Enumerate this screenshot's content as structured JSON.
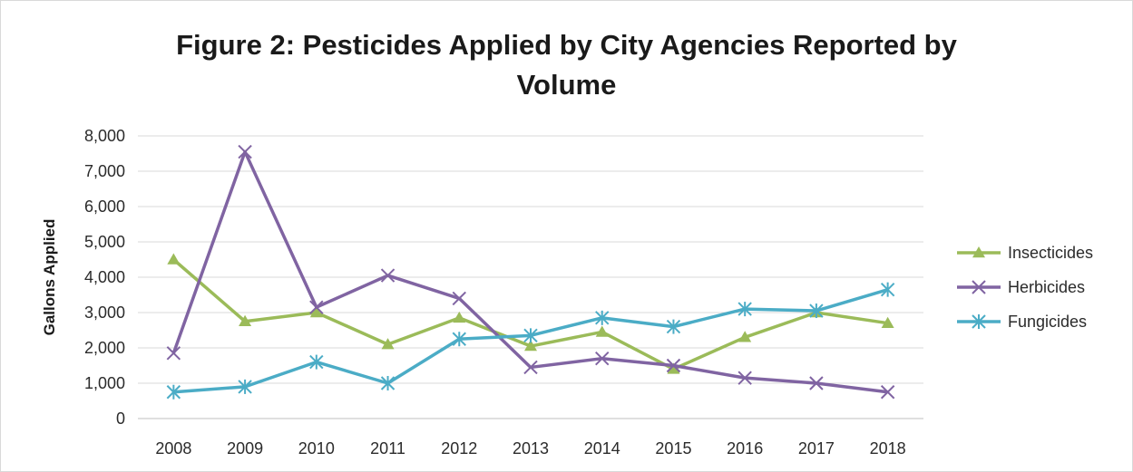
{
  "chart_data": {
    "type": "line",
    "title_line1": "Figure 2: Pesticides Applied by City Agencies Reported by",
    "title_line2": "Volume",
    "ylabel": "Gallons Applied",
    "xlabel": "",
    "categories": [
      "2008",
      "2009",
      "2010",
      "2011",
      "2012",
      "2013",
      "2014",
      "2015",
      "2016",
      "2017",
      "2018"
    ],
    "ylim": [
      0,
      8000
    ],
    "yticks": [
      0,
      1000,
      2000,
      3000,
      4000,
      5000,
      6000,
      7000,
      8000
    ],
    "ytick_labels": [
      "0",
      "1,000",
      "2,000",
      "3,000",
      "4,000",
      "5,000",
      "6,000",
      "7,000",
      "8,000"
    ],
    "grid": true,
    "legend_position": "right",
    "series": [
      {
        "name": "Insecticides",
        "color": "#9bbb59",
        "marker": "triangle",
        "values": [
          4500,
          2750,
          3000,
          2100,
          2850,
          2050,
          2450,
          1400,
          2300,
          3000,
          2700
        ]
      },
      {
        "name": "Herbicides",
        "color": "#8064a2",
        "marker": "x",
        "values": [
          1850,
          7550,
          3150,
          4050,
          3400,
          1450,
          1700,
          1500,
          1150,
          1000,
          750
        ]
      },
      {
        "name": "Fungicides",
        "color": "#4bacc6",
        "marker": "star",
        "values": [
          750,
          900,
          1600,
          1000,
          2250,
          2350,
          2850,
          2600,
          3100,
          3050,
          3650
        ]
      }
    ]
  }
}
